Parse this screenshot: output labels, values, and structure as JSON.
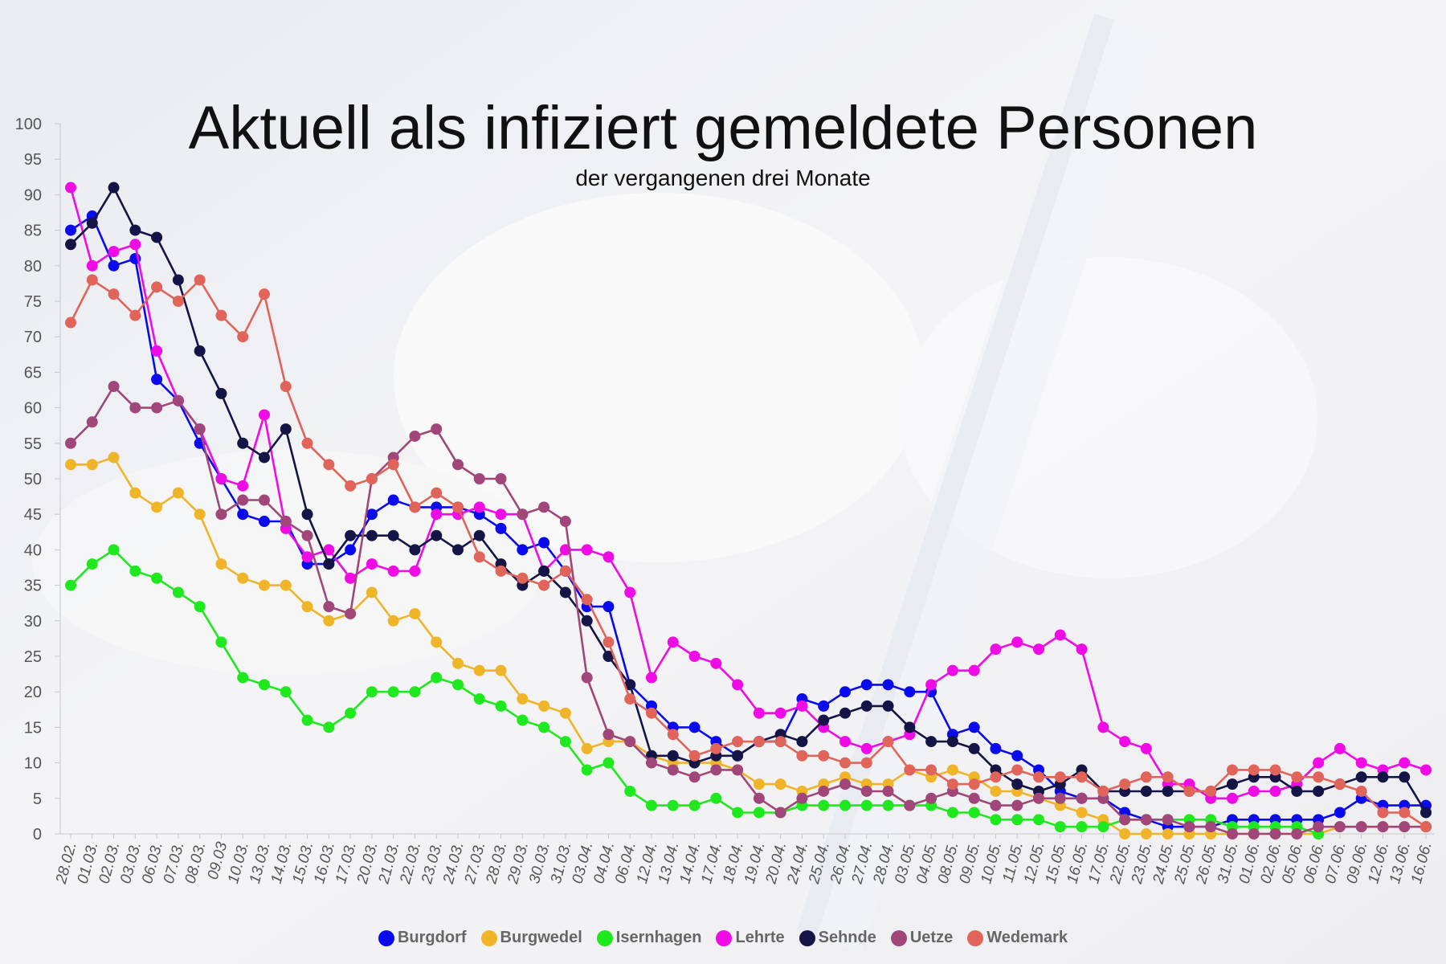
{
  "title": "Aktuell als infiziert gemeldete Personen",
  "subtitle": "der vergangenen drei Monate",
  "chart_data": {
    "type": "line",
    "ylim": [
      0,
      100
    ],
    "yticks": [
      0,
      5,
      10,
      15,
      20,
      25,
      30,
      35,
      40,
      45,
      50,
      55,
      60,
      65,
      70,
      75,
      80,
      85,
      90,
      95,
      100
    ],
    "legend_position": "bottom",
    "x": [
      "28.02.",
      "01.03.",
      "02.03.",
      "03.03.",
      "06.03.",
      "07.03.",
      "08.03.",
      "09.03",
      "10.03.",
      "13.03.",
      "14.03.",
      "15.03.",
      "16.03.",
      "17.03.",
      "20.03.",
      "21.03.",
      "22.03.",
      "23.03.",
      "24.03.",
      "27.03.",
      "28.03.",
      "29.03.",
      "30.03.",
      "31.03.",
      "03.04.",
      "04.04.",
      "06.04.",
      "12.04.",
      "13.04.",
      "14.04.",
      "17.04.",
      "18.04.",
      "19.04.",
      "20.04.",
      "24.04.",
      "25.04.",
      "26.04.",
      "27.04.",
      "28.04.",
      "03.05.",
      "04.05.",
      "08.05.",
      "09.05.",
      "10.05.",
      "11.05.",
      "12.05.",
      "15.05.",
      "16.05.",
      "17.05.",
      "22.05.",
      "23.05.",
      "24.05.",
      "25.05.",
      "26.05.",
      "31.05.",
      "01.06.",
      "02.06.",
      "05.06.",
      "06.06.",
      "07.06.",
      "09.06.",
      "12.06.",
      "13.06.",
      "16.06."
    ],
    "series": [
      {
        "name": "Burgdorf",
        "color": "#0a0aee",
        "values": [
          85,
          87,
          80,
          81,
          64,
          61,
          55,
          50,
          45,
          44,
          44,
          38,
          38,
          40,
          45,
          47,
          46,
          46,
          46,
          45,
          43,
          40,
          41,
          37,
          32,
          32,
          21,
          18,
          15,
          15,
          13,
          11,
          13,
          13,
          19,
          18,
          20,
          21,
          21,
          20,
          20,
          14,
          15,
          12,
          11,
          9,
          6,
          5,
          5,
          3,
          2,
          1,
          1,
          1,
          2,
          2,
          2,
          2,
          2,
          3,
          5,
          4,
          4,
          4
        ]
      },
      {
        "name": "Burgwedel",
        "color": "#f0b428",
        "values": [
          52,
          52,
          53,
          48,
          46,
          48,
          45,
          38,
          36,
          35,
          35,
          32,
          30,
          31,
          34,
          30,
          31,
          27,
          24,
          23,
          23,
          19,
          18,
          17,
          12,
          13,
          13,
          11,
          10,
          10,
          10,
          9,
          7,
          7,
          6,
          7,
          8,
          7,
          7,
          9,
          8,
          9,
          8,
          6,
          6,
          5,
          4,
          3,
          2,
          0,
          0,
          0,
          0,
          0,
          0,
          0,
          0,
          0,
          0,
          1,
          1,
          1,
          1,
          1
        ]
      },
      {
        "name": "Isernhagen",
        "color": "#1ee81e",
        "values": [
          35,
          38,
          40,
          37,
          36,
          34,
          32,
          27,
          22,
          21,
          20,
          16,
          15,
          17,
          20,
          20,
          20,
          22,
          21,
          19,
          18,
          16,
          15,
          13,
          9,
          10,
          6,
          4,
          4,
          4,
          5,
          3,
          3,
          3,
          4,
          4,
          4,
          4,
          4,
          4,
          4,
          3,
          3,
          2,
          2,
          2,
          1,
          1,
          1,
          2,
          2,
          2,
          2,
          2,
          1,
          1,
          1,
          1,
          0,
          null,
          null,
          null,
          null,
          null
        ]
      },
      {
        "name": "Lehrte",
        "color": "#f00ae6",
        "values": [
          91,
          80,
          82,
          83,
          68,
          61,
          57,
          50,
          49,
          59,
          43,
          39,
          40,
          36,
          38,
          37,
          37,
          45,
          45,
          46,
          45,
          45,
          37,
          40,
          40,
          39,
          34,
          22,
          27,
          25,
          24,
          21,
          17,
          17,
          18,
          15,
          13,
          12,
          13,
          14,
          21,
          23,
          23,
          26,
          27,
          26,
          28,
          26,
          15,
          13,
          12,
          7,
          7,
          5,
          5,
          6,
          6,
          7,
          10,
          12,
          10,
          9,
          10,
          9
        ]
      },
      {
        "name": "Sehnde",
        "color": "#141446",
        "values": [
          83,
          86,
          91,
          85,
          84,
          78,
          68,
          62,
          55,
          53,
          57,
          45,
          38,
          42,
          42,
          42,
          40,
          42,
          40,
          42,
          38,
          35,
          37,
          34,
          30,
          25,
          21,
          11,
          11,
          10,
          11,
          11,
          13,
          14,
          13,
          16,
          17,
          18,
          18,
          15,
          13,
          13,
          12,
          9,
          7,
          6,
          7,
          9,
          6,
          6,
          6,
          6,
          6,
          6,
          7,
          8,
          8,
          6,
          6,
          7,
          8,
          8,
          8,
          3
        ]
      },
      {
        "name": "Uetze",
        "color": "#a04678",
        "values": [
          55,
          58,
          63,
          60,
          60,
          61,
          57,
          45,
          47,
          47,
          44,
          42,
          32,
          31,
          50,
          53,
          56,
          57,
          52,
          50,
          50,
          45,
          46,
          44,
          22,
          14,
          13,
          10,
          9,
          8,
          9,
          9,
          5,
          3,
          5,
          6,
          7,
          6,
          6,
          4,
          5,
          6,
          5,
          4,
          4,
          5,
          5,
          5,
          5,
          2,
          2,
          2,
          1,
          1,
          0,
          0,
          0,
          0,
          1,
          1,
          1,
          1,
          1,
          1
        ]
      },
      {
        "name": "Wedemark",
        "color": "#e0645a",
        "values": [
          72,
          78,
          76,
          73,
          77,
          75,
          78,
          73,
          70,
          76,
          63,
          55,
          52,
          49,
          50,
          52,
          46,
          48,
          46,
          39,
          37,
          36,
          35,
          37,
          33,
          27,
          19,
          17,
          14,
          11,
          12,
          13,
          13,
          13,
          11,
          11,
          10,
          10,
          13,
          9,
          9,
          7,
          7,
          8,
          9,
          8,
          8,
          8,
          6,
          7,
          8,
          8,
          6,
          6,
          9,
          9,
          9,
          8,
          8,
          7,
          6,
          3,
          3,
          1
        ]
      }
    ]
  }
}
